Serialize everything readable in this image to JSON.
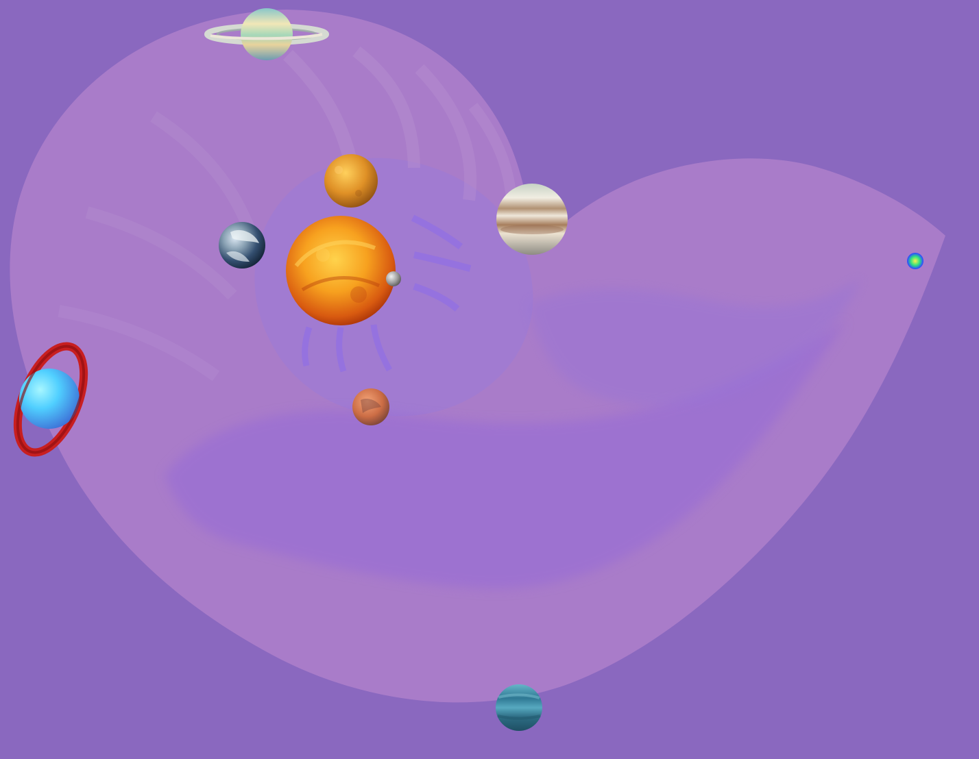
{
  "scene": {
    "description_visible_text": "",
    "background_color": "#8a68bf",
    "shell_color": "#a87fca",
    "shell_shadow_color": "#9a6ed8"
  },
  "bodies": [
    {
      "name": "sun",
      "icon": "sun-icon",
      "color": "#f08a18"
    },
    {
      "name": "mercury",
      "icon": "mercury-icon",
      "color": "#b9b9b9"
    },
    {
      "name": "venus",
      "icon": "venus-icon",
      "color": "#e69a2f"
    },
    {
      "name": "earth",
      "icon": "earth-icon",
      "color": "#53708e"
    },
    {
      "name": "mars",
      "icon": "mars-icon",
      "color": "#c77a53"
    },
    {
      "name": "jupiter",
      "icon": "jupiter-icon",
      "color": "#d8c7a7"
    },
    {
      "name": "saturn",
      "icon": "saturn-icon",
      "color": "#b7d3b7"
    },
    {
      "name": "uranus",
      "icon": "uranus-icon",
      "color": "#49d2ff"
    },
    {
      "name": "neptune",
      "icon": "neptune-icon",
      "color": "#2f7d99"
    },
    {
      "name": "pluto",
      "icon": "pluto-icon",
      "color": "#2f58ff"
    }
  ]
}
